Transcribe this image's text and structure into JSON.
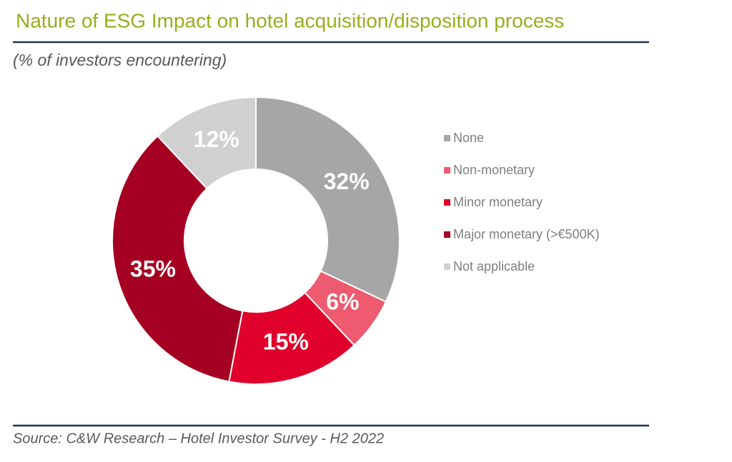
{
  "chart_data": {
    "type": "donut",
    "title": "Nature of ESG Impact on hotel acquisition/disposition process",
    "subtitle": "(% of investors encountering)",
    "source": "Source: C&W Research – Hotel Investor Survey - H2 2022",
    "categories": [
      "None",
      "Non-monetary",
      "Minor monetary",
      "Major monetary (>€500K)",
      "Not applicable"
    ],
    "values": [
      32,
      6,
      15,
      35,
      12
    ],
    "value_labels": [
      "32%",
      "6%",
      "15%",
      "35%",
      "12%"
    ],
    "colors": [
      "#a6a6a6",
      "#ee5a6f",
      "#e0002b",
      "#a50021",
      "#d0d0d0"
    ],
    "legend": "right"
  }
}
